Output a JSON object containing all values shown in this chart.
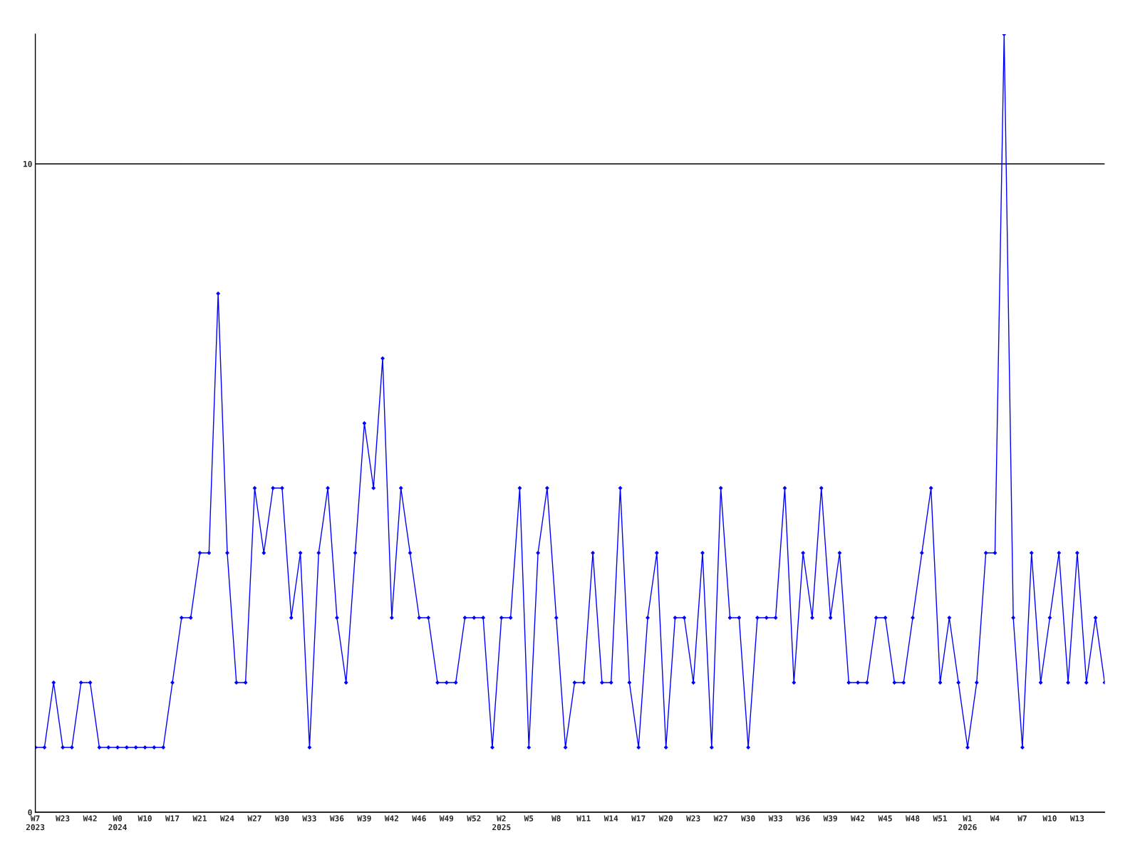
{
  "chart_data": {
    "type": "line",
    "categories": [
      "W7\n2023",
      null,
      null,
      "W23",
      null,
      null,
      "W42",
      null,
      null,
      "W0\n2024",
      null,
      null,
      "W10",
      null,
      null,
      "W17",
      null,
      null,
      "W21",
      null,
      null,
      "W24",
      null,
      null,
      "W27",
      null,
      null,
      "W30",
      null,
      null,
      "W33",
      null,
      null,
      "W36",
      null,
      null,
      "W39",
      null,
      null,
      "W42",
      null,
      null,
      "W46",
      null,
      null,
      "W49",
      null,
      null,
      "W52",
      null,
      null,
      "W2\n2025",
      null,
      null,
      "W5",
      null,
      null,
      "W8",
      null,
      null,
      "W11",
      null,
      null,
      "W14",
      null,
      null,
      "W17",
      null,
      null,
      "W20",
      null,
      null,
      "W23",
      null,
      null,
      "W27",
      null,
      null,
      "W30",
      null,
      null,
      "W33",
      null,
      null,
      "W36",
      null,
      null,
      "W39",
      null,
      null,
      "W42",
      null,
      null,
      "W45",
      null,
      null,
      "W48",
      null,
      null,
      "W51",
      null,
      null,
      "W1\n2026",
      null,
      null,
      "W4",
      null,
      null,
      "W7",
      null,
      null,
      "W10",
      null,
      null,
      "W13",
      null,
      null,
      null
    ],
    "series": [
      {
        "color": "#0000ff",
        "values": [
          1,
          1,
          2,
          1,
          1,
          2,
          2,
          1,
          1,
          1,
          1,
          1,
          1,
          1,
          1,
          2,
          3,
          3,
          4,
          4,
          8,
          4,
          2,
          2,
          5,
          4,
          5,
          5,
          3,
          4,
          1,
          4,
          5,
          3,
          2,
          4,
          6,
          5,
          7,
          3,
          5,
          4,
          3,
          3,
          2,
          2,
          2,
          3,
          3,
          3,
          1,
          3,
          3,
          5,
          1,
          4,
          5,
          3,
          1,
          2,
          2,
          4,
          2,
          2,
          5,
          2,
          1,
          3,
          4,
          1,
          3,
          3,
          2,
          4,
          1,
          5,
          3,
          3,
          1,
          3,
          3,
          3,
          5,
          2,
          4,
          3,
          5,
          3,
          4,
          2,
          2,
          2,
          3,
          3,
          2,
          2,
          3,
          4,
          5,
          2,
          3,
          2,
          1,
          2,
          4,
          4,
          12,
          3,
          1,
          4,
          2,
          3,
          4,
          2,
          4,
          2,
          3,
          2
        ]
      }
    ],
    "ylim": [
      0,
      12
    ],
    "yticks": [
      0,
      10
    ],
    "grid": "y",
    "marker": "diamond",
    "line_style": "solid"
  }
}
